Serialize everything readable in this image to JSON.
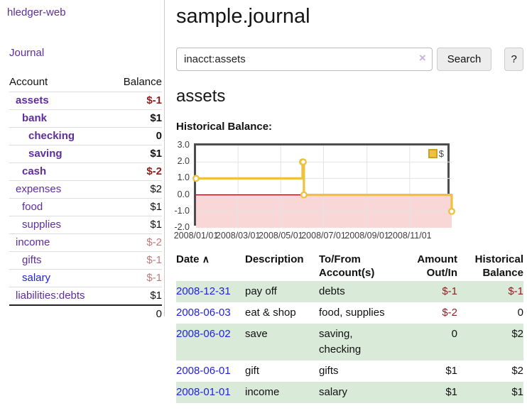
{
  "app": {
    "brand": "hledger-web"
  },
  "colors": {
    "accent_purple": "#5f2d9e",
    "link_blue": "#2222dd",
    "negative_strong": "#8f1d1d",
    "negative_faded": "#b97c7c",
    "row_stripe_green": "#d9ead9",
    "chart_line_gold": "#edc240",
    "chart_negative_fill": "#f9d7d7",
    "chart_zero_line": "#8b0000"
  },
  "sidebar": {
    "journal_link": "Journal",
    "accounts": {
      "headers": {
        "account": "Account",
        "balance": "Balance"
      },
      "rows": [
        {
          "name": "assets",
          "balance": "$-1",
          "indent": 1
        },
        {
          "name": "bank",
          "balance": "$1",
          "indent": 2
        },
        {
          "name": "checking",
          "balance": "0",
          "indent": 3
        },
        {
          "name": "saving",
          "balance": "$1",
          "indent": 3
        },
        {
          "name": "cash",
          "balance": "$-2",
          "indent": 2
        },
        {
          "name": "expenses",
          "balance": "$2",
          "indent": 1
        },
        {
          "name": "food",
          "balance": "$1",
          "indent": 2
        },
        {
          "name": "supplies",
          "balance": "$1",
          "indent": 2
        },
        {
          "name": "income",
          "balance": "$-2",
          "indent": 1
        },
        {
          "name": "gifts",
          "balance": "$-1",
          "indent": 2
        },
        {
          "name": "salary",
          "balance": "$-1",
          "indent": 2
        },
        {
          "name": "liabilities:debts",
          "balance": "$1",
          "indent": 1
        }
      ],
      "total": "0"
    }
  },
  "main": {
    "title": "sample.journal",
    "search": {
      "value": "inacct:assets",
      "clear_icon": "×",
      "button_label": "Search",
      "help_label": "?"
    },
    "account_heading": "assets",
    "register": {
      "sort_caret": "∧",
      "headers": [
        "Date",
        "Description",
        "To/From Account(s)",
        "Amount Out/In",
        "Historical Balance"
      ],
      "rows": [
        {
          "date": "2008-12-31",
          "description": "pay off",
          "accounts": "debts",
          "amount": "$-1",
          "balance": "$-1"
        },
        {
          "date": "2008-06-03",
          "description": "eat & shop",
          "accounts": "food, supplies",
          "amount": "$-2",
          "balance": "0"
        },
        {
          "date": "2008-06-02",
          "description": "save",
          "accounts": "saving, checking",
          "amount": "0",
          "balance": "$2"
        },
        {
          "date": "2008-06-01",
          "description": "gift",
          "accounts": "gifts",
          "amount": "$1",
          "balance": "$2"
        },
        {
          "date": "2008-01-01",
          "description": "income",
          "accounts": "salary",
          "amount": "$1",
          "balance": "$1"
        }
      ]
    }
  },
  "chart_data": {
    "type": "line",
    "title": "Historical Balance:",
    "step": true,
    "series": [
      {
        "name": "$",
        "x": [
          "2008-01-01",
          "2008-06-01",
          "2008-06-02",
          "2008-06-03",
          "2008-12-31"
        ],
        "y": [
          1,
          2,
          2,
          0,
          -1
        ]
      }
    ],
    "xrange": [
      "2008-01-01",
      "2008-12-31"
    ],
    "ylim": [
      -2,
      3
    ],
    "yticks": [
      3,
      2,
      1,
      0,
      -1,
      -2
    ],
    "ytick_labels": [
      "3.0",
      "2.0",
      "1.0",
      "0.0",
      "-1.0",
      "-2.0"
    ],
    "xticks": [
      "2008/01/01",
      "2008/03/01",
      "2008/05/01",
      "2008/07/01",
      "2008/09/01",
      "2008/11/01"
    ],
    "grid": true,
    "legend_position": "top-right",
    "line_color": "#edc240",
    "neg_fill": "#f9d7d7",
    "zero_color": "#8b0000"
  }
}
